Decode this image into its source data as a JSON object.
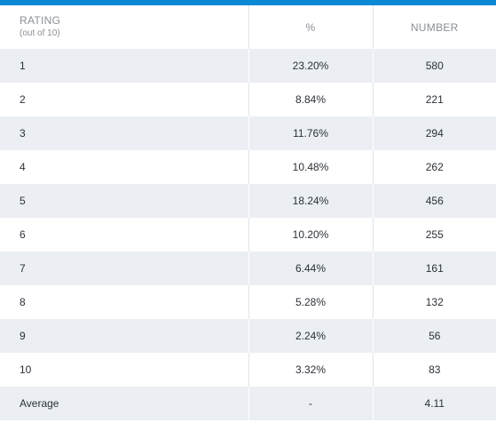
{
  "header": {
    "rating_label": "RATING",
    "rating_sub": "(out of 10)",
    "percent_label": "%",
    "number_label": "NUMBER"
  },
  "rows": [
    {
      "rating": "1",
      "percent": "23.20%",
      "number": "580"
    },
    {
      "rating": "2",
      "percent": "8.84%",
      "number": "221"
    },
    {
      "rating": "3",
      "percent": "11.76%",
      "number": "294"
    },
    {
      "rating": "4",
      "percent": "10.48%",
      "number": "262"
    },
    {
      "rating": "5",
      "percent": "18.24%",
      "number": "456"
    },
    {
      "rating": "6",
      "percent": "10.20%",
      "number": "255"
    },
    {
      "rating": "7",
      "percent": "6.44%",
      "number": "161"
    },
    {
      "rating": "8",
      "percent": "5.28%",
      "number": "132"
    },
    {
      "rating": "9",
      "percent": "2.24%",
      "number": "56"
    },
    {
      "rating": "10",
      "percent": "3.32%",
      "number": "83"
    },
    {
      "rating": "Average",
      "percent": "-",
      "number": "4.11"
    }
  ],
  "colors": {
    "accent_top_bar": "#0a88d6",
    "row_shade": "#ebeff3",
    "header_text": "#8a8f96",
    "body_text": "#2c3138"
  }
}
